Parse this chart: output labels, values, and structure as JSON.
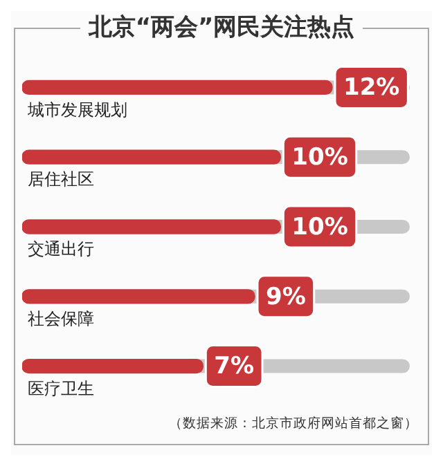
{
  "chart_data": {
    "type": "bar",
    "orientation": "horizontal",
    "title": "北京“两会”网民关注热点",
    "categories": [
      "城市发展规划",
      "居住社区",
      "交通出行",
      "社会保障",
      "医疗卫生"
    ],
    "values": [
      12,
      10,
      10,
      9,
      7
    ],
    "value_labels": [
      "12%",
      "10%",
      "10%",
      "9%",
      "7%"
    ],
    "color": "#c8373a",
    "tick_labels": false,
    "grid": false,
    "legend": false,
    "annotations": [
      "（数据来源：北京市政府网站首都之窗）"
    ]
  }
}
